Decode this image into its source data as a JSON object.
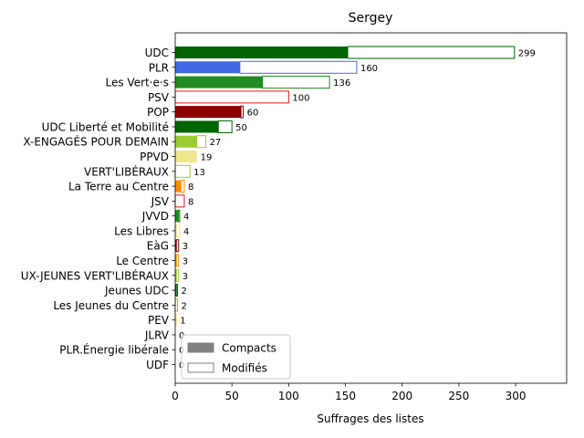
{
  "chart_data": {
    "type": "bar",
    "orientation": "horizontal",
    "title": "Sergey",
    "xlabel": "Suffrages des listes",
    "ylabel": "",
    "xlim": [
      0,
      345
    ],
    "xticks": [
      0,
      50,
      100,
      150,
      200,
      250,
      300
    ],
    "grid": false,
    "legend": {
      "placement": "lower-left",
      "entries": [
        {
          "label": "Compacts",
          "style": "filled",
          "color": "#808080"
        },
        {
          "label": "Modifiés",
          "style": "outline",
          "color": "#808080"
        }
      ]
    },
    "categories": [
      "UDC",
      "PLR",
      "Les Vert·e·s",
      "PSV",
      "POP",
      "UDC Liberté et Mobilité",
      "X-ENGAGÉS POUR DEMAIN",
      "PPVD",
      "VERT'LIBÉRAUX",
      "La Terre au Centre",
      "JSV",
      "JVVD",
      "Les Libres",
      "EàG",
      "Le Centre",
      "UX-JEUNES VERT'LIBÉRAUX",
      "Jeunes UDC",
      "Les Jeunes du Centre",
      "PEV",
      "JLRV",
      "PLR.Énergie libérale",
      "UDF"
    ],
    "series": [
      {
        "name": "Compacts",
        "values": [
          152,
          57,
          77,
          0,
          58,
          38,
          19,
          19,
          0,
          5,
          0,
          3,
          1,
          1,
          1,
          1,
          1,
          0,
          0,
          0,
          0,
          0
        ]
      },
      {
        "name": "Modifiés",
        "values": [
          147,
          103,
          59,
          100,
          2,
          12,
          8,
          0,
          13,
          3,
          8,
          1,
          3,
          2,
          2,
          2,
          1,
          2,
          1,
          0,
          0,
          0
        ]
      }
    ],
    "totals": [
      299,
      160,
      136,
      100,
      60,
      50,
      27,
      19,
      13,
      8,
      8,
      4,
      4,
      3,
      3,
      3,
      2,
      2,
      1,
      0,
      0,
      0
    ],
    "bar_colors": [
      "#006400",
      "#4169e1",
      "#228b22",
      "#e41a1c",
      "#8b0000",
      "#006400",
      "#9acd32",
      "#f0e68c",
      "#9acd32",
      "#ff8c00",
      "#e41a1c",
      "#228b22",
      "#f0e68c",
      "#8b0000",
      "#ff8c00",
      "#9acd32",
      "#006400",
      "#ff8c00",
      "#f0e68c",
      "#4169e1",
      "#4169e1",
      "#8b0000"
    ]
  }
}
